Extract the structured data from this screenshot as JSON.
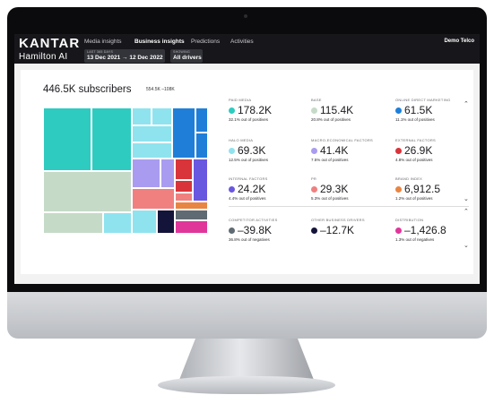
{
  "header": {
    "brand": "KANTAR",
    "product": "Hamilton AI",
    "nav": [
      "Media insights",
      "Business insights",
      "Predictions",
      "Activities"
    ],
    "active_tab": "Business insights",
    "period_label": "LAST 365 DAYS",
    "period_value": "13 Dec 2021 → 12 Dec 2022",
    "showing_label": "SHOWING",
    "showing_value": "All drivers",
    "account": "Demo Telco"
  },
  "summary": {
    "title": "446.5K subscribers",
    "range": "554.5K –108K"
  },
  "metrics": [
    {
      "label": "PAID MEDIA",
      "value": "178.2K",
      "sub": "32.1% out of positives",
      "color": "#2ecbc0"
    },
    {
      "label": "BASE",
      "value": "115.4K",
      "sub": "20.8% out of positives",
      "color": "#c6dac8"
    },
    {
      "label": "ONLINE DIRECT MARKETING",
      "value": "61.5K",
      "sub": "11.1% out of positives",
      "color": "#1f7fd8"
    },
    {
      "label": "HALO MEDIA",
      "value": "69.3K",
      "sub": "12.5% out of positives",
      "color": "#8fe3ee"
    },
    {
      "label": "MACRO-ECONOMICAL FACTORS",
      "value": "41.4K",
      "sub": "7.5% out of positives",
      "color": "#a99cf0"
    },
    {
      "label": "EXTERNAL FACTORS",
      "value": "26.9K",
      "sub": "4.8% out of positives",
      "color": "#d8343a"
    },
    {
      "label": "INTERNAL FACTORS",
      "value": "24.2K",
      "sub": "4.4% out of positives",
      "color": "#6a57e0"
    },
    {
      "label": "PR",
      "value": "29.3K",
      "sub": "5.3% out of positives",
      "color": "#f08080"
    },
    {
      "label": "BRAND INDEX",
      "value": "6,912.5",
      "sub": "1.2% out of positives",
      "color": "#e98542"
    },
    {
      "label": "COMPETITOR ACTIVITIES",
      "value": "–39.8K",
      "sub": "36.8% out of negatives",
      "color": "#5f6a72"
    },
    {
      "label": "OTHER BUSINESS DRIVERS",
      "value": "–12.7K",
      "sub": "",
      "color": "#14143a"
    },
    {
      "label": "DISTRIBUTION",
      "value": "–1,426.8",
      "sub": "1.3% out of negatives",
      "color": "#e0369a"
    }
  ],
  "icons": {
    "scroll_up": "chevron-up-icon",
    "scroll_down": "chevron-down-icon"
  },
  "colors": {
    "topbar": "#17171b",
    "screen_bg": "#f2f2f2"
  }
}
